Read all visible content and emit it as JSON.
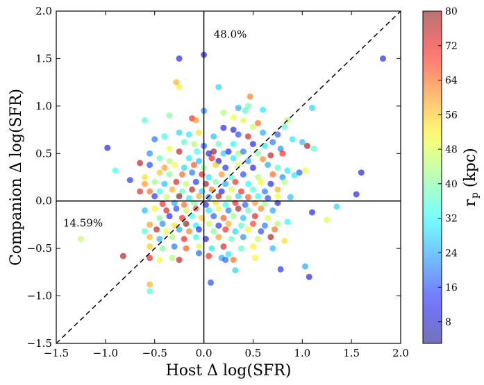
{
  "chart_data": {
    "type": "scatter",
    "xlabel": "Host Δ log(SFR)",
    "ylabel": "Companion Δ log(SFR)",
    "xlim": [
      -1.5,
      2.0
    ],
    "ylim": [
      -1.5,
      2.0
    ],
    "x_ticks": [
      "−1.5",
      "−1.0",
      "−0.5",
      "0.0",
      "0.5",
      "1.0",
      "1.5",
      "2.0"
    ],
    "y_ticks": [
      "−1.5",
      "−1.0",
      "−0.5",
      "0.0",
      "0.5",
      "1.0",
      "1.5",
      "2.0"
    ],
    "annotations": [
      {
        "text": "48.0%",
        "x": 0.1,
        "y": 1.72
      },
      {
        "text": "14.59%",
        "x": -1.43,
        "y": -0.27
      }
    ],
    "reference_lines": [
      {
        "type": "vertical",
        "x": 0.0
      },
      {
        "type": "horizontal",
        "y": 0.0
      },
      {
        "type": "diagonal",
        "style": "dashed",
        "from": [
          -1.5,
          -1.5
        ],
        "to": [
          2.0,
          2.0
        ]
      }
    ],
    "colorbar": {
      "label": "r_p (kpc)",
      "label_main": "r",
      "label_sub": "p",
      "label_unit": " (kpc)",
      "min": 3,
      "max": 80,
      "ticks": [
        8,
        16,
        24,
        32,
        40,
        48,
        56,
        64,
        72,
        80
      ],
      "colormap": "jet",
      "alpha": 0.55
    },
    "marker_alpha": 0.6,
    "points": [
      {
        "x": -0.25,
        "y": 1.5,
        "c": 10
      },
      {
        "x": 0.0,
        "y": 1.54,
        "c": 8
      },
      {
        "x": 1.82,
        "y": 1.5,
        "c": 10
      },
      {
        "x": -0.28,
        "y": 1.25,
        "c": 58
      },
      {
        "x": -0.25,
        "y": 1.2,
        "c": 52
      },
      {
        "x": 0.15,
        "y": 1.2,
        "c": 28
      },
      {
        "x": 0.47,
        "y": 1.1,
        "c": 62
      },
      {
        "x": 0.45,
        "y": 1.0,
        "c": 38
      },
      {
        "x": 0.35,
        "y": 0.98,
        "c": 24
      },
      {
        "x": 0.42,
        "y": 0.95,
        "c": 36
      },
      {
        "x": 0.6,
        "y": 0.96,
        "c": 30
      },
      {
        "x": 0.0,
        "y": 0.95,
        "c": 22
      },
      {
        "x": 0.2,
        "y": 0.93,
        "c": 44
      },
      {
        "x": 1.1,
        "y": 0.98,
        "c": 28
      },
      {
        "x": -0.6,
        "y": 0.85,
        "c": 36
      },
      {
        "x": -0.35,
        "y": 0.9,
        "c": 40
      },
      {
        "x": -0.12,
        "y": 0.87,
        "c": 70
      },
      {
        "x": -0.08,
        "y": 0.85,
        "c": 60
      },
      {
        "x": 0.3,
        "y": 0.88,
        "c": 50
      },
      {
        "x": 0.4,
        "y": 0.85,
        "c": 48
      },
      {
        "x": 0.55,
        "y": 0.82,
        "c": 64
      },
      {
        "x": 0.85,
        "y": 0.85,
        "c": 44
      },
      {
        "x": 0.2,
        "y": 0.77,
        "c": 12
      },
      {
        "x": 0.3,
        "y": 0.75,
        "c": 8
      },
      {
        "x": 0.5,
        "y": 0.78,
        "c": 46
      },
      {
        "x": 0.82,
        "y": 0.78,
        "c": 36
      },
      {
        "x": -0.25,
        "y": 0.72,
        "c": 28
      },
      {
        "x": -0.15,
        "y": 0.7,
        "c": 30
      },
      {
        "x": -0.05,
        "y": 0.72,
        "c": 54
      },
      {
        "x": 0.1,
        "y": 0.68,
        "c": 26
      },
      {
        "x": 0.35,
        "y": 0.7,
        "c": 16
      },
      {
        "x": 0.6,
        "y": 0.72,
        "c": 24
      },
      {
        "x": 0.75,
        "y": 0.7,
        "c": 18
      },
      {
        "x": -0.4,
        "y": 0.68,
        "c": 34
      },
      {
        "x": -0.5,
        "y": 0.65,
        "c": 20
      },
      {
        "x": 0.45,
        "y": 0.68,
        "c": 74
      },
      {
        "x": 0.7,
        "y": 0.62,
        "c": 20
      },
      {
        "x": 0.9,
        "y": 0.65,
        "c": 30
      },
      {
        "x": -0.2,
        "y": 0.62,
        "c": 36
      },
      {
        "x": -0.1,
        "y": 0.6,
        "c": 44
      },
      {
        "x": 0.0,
        "y": 0.58,
        "c": 18
      },
      {
        "x": 0.15,
        "y": 0.6,
        "c": 38
      },
      {
        "x": 0.3,
        "y": 0.6,
        "c": 32
      },
      {
        "x": 0.5,
        "y": 0.6,
        "c": 10
      },
      {
        "x": 0.62,
        "y": 0.58,
        "c": 30
      },
      {
        "x": 0.78,
        "y": 0.55,
        "c": 22
      },
      {
        "x": 1.0,
        "y": 0.62,
        "c": 26
      },
      {
        "x": 1.05,
        "y": 0.58,
        "c": 78
      },
      {
        "x": 1.12,
        "y": 0.55,
        "c": 36
      },
      {
        "x": -0.35,
        "y": 0.55,
        "c": 50
      },
      {
        "x": -0.25,
        "y": 0.52,
        "c": 76
      },
      {
        "x": -0.07,
        "y": 0.52,
        "c": 34
      },
      {
        "x": 0.05,
        "y": 0.5,
        "c": 8
      },
      {
        "x": 0.1,
        "y": 0.52,
        "c": 80
      },
      {
        "x": 0.2,
        "y": 0.5,
        "c": 28
      },
      {
        "x": 0.25,
        "y": 0.52,
        "c": 12
      },
      {
        "x": 0.35,
        "y": 0.5,
        "c": 44
      },
      {
        "x": 0.4,
        "y": 0.52,
        "c": 20
      },
      {
        "x": 0.55,
        "y": 0.5,
        "c": 40
      },
      {
        "x": 0.68,
        "y": 0.48,
        "c": 76
      },
      {
        "x": 0.8,
        "y": 0.5,
        "c": 70
      },
      {
        "x": -0.55,
        "y": 0.5,
        "c": 22
      },
      {
        "x": -0.45,
        "y": 0.45,
        "c": 38
      },
      {
        "x": -0.35,
        "y": 0.42,
        "c": 44
      },
      {
        "x": -0.15,
        "y": 0.45,
        "c": 30
      },
      {
        "x": -0.05,
        "y": 0.42,
        "c": 26
      },
      {
        "x": 0.08,
        "y": 0.45,
        "c": 72
      },
      {
        "x": 0.15,
        "y": 0.42,
        "c": 8
      },
      {
        "x": 0.3,
        "y": 0.45,
        "c": 30
      },
      {
        "x": 0.45,
        "y": 0.42,
        "c": 24
      },
      {
        "x": 0.6,
        "y": 0.44,
        "c": 62
      },
      {
        "x": -0.98,
        "y": 0.56,
        "c": 10
      },
      {
        "x": -0.65,
        "y": 0.4,
        "c": 76
      },
      {
        "x": -0.6,
        "y": 0.25,
        "c": 54
      },
      {
        "x": -0.9,
        "y": 0.32,
        "c": 34
      },
      {
        "x": -0.75,
        "y": 0.22,
        "c": 14
      },
      {
        "x": -0.55,
        "y": 0.38,
        "c": 16
      },
      {
        "x": -0.4,
        "y": 0.35,
        "c": 60
      },
      {
        "x": -0.3,
        "y": 0.38,
        "c": 50
      },
      {
        "x": -0.2,
        "y": 0.35,
        "c": 28
      },
      {
        "x": -0.1,
        "y": 0.38,
        "c": 66
      },
      {
        "x": 0.0,
        "y": 0.35,
        "c": 42
      },
      {
        "x": 0.12,
        "y": 0.38,
        "c": 56
      },
      {
        "x": 0.22,
        "y": 0.35,
        "c": 14
      },
      {
        "x": 0.35,
        "y": 0.38,
        "c": 48
      },
      {
        "x": 0.5,
        "y": 0.35,
        "c": 10
      },
      {
        "x": 0.65,
        "y": 0.38,
        "c": 24
      },
      {
        "x": 0.75,
        "y": 0.35,
        "c": 36
      },
      {
        "x": 0.85,
        "y": 0.32,
        "c": 30
      },
      {
        "x": 0.97,
        "y": 0.3,
        "c": 18
      },
      {
        "x": 1.03,
        "y": 0.32,
        "c": 50
      },
      {
        "x": 1.6,
        "y": 0.3,
        "c": 8
      },
      {
        "x": -0.45,
        "y": 0.3,
        "c": 56
      },
      {
        "x": -0.35,
        "y": 0.28,
        "c": 40
      },
      {
        "x": -0.22,
        "y": 0.28,
        "c": 64
      },
      {
        "x": -0.12,
        "y": 0.3,
        "c": 20
      },
      {
        "x": -0.02,
        "y": 0.28,
        "c": 72
      },
      {
        "x": 0.05,
        "y": 0.25,
        "c": 30
      },
      {
        "x": 0.18,
        "y": 0.28,
        "c": 60
      },
      {
        "x": 0.28,
        "y": 0.25,
        "c": 36
      },
      {
        "x": 0.4,
        "y": 0.28,
        "c": 16
      },
      {
        "x": 0.55,
        "y": 0.25,
        "c": 44
      },
      {
        "x": 0.7,
        "y": 0.28,
        "c": 64
      },
      {
        "x": 0.8,
        "y": 0.25,
        "c": 22
      },
      {
        "x": 0.92,
        "y": 0.27,
        "c": 30
      },
      {
        "x": -0.6,
        "y": 0.18,
        "c": 60
      },
      {
        "x": -0.5,
        "y": 0.2,
        "c": 42
      },
      {
        "x": -0.4,
        "y": 0.18,
        "c": 26
      },
      {
        "x": -0.28,
        "y": 0.2,
        "c": 74
      },
      {
        "x": -0.18,
        "y": 0.18,
        "c": 46
      },
      {
        "x": -0.08,
        "y": 0.2,
        "c": 14
      },
      {
        "x": 0.02,
        "y": 0.18,
        "c": 78
      },
      {
        "x": 0.12,
        "y": 0.2,
        "c": 40
      },
      {
        "x": 0.22,
        "y": 0.18,
        "c": 24
      },
      {
        "x": 0.32,
        "y": 0.2,
        "c": 70
      },
      {
        "x": 0.45,
        "y": 0.18,
        "c": 32
      },
      {
        "x": 0.58,
        "y": 0.2,
        "c": 52
      },
      {
        "x": 0.68,
        "y": 0.18,
        "c": 12
      },
      {
        "x": 0.82,
        "y": 0.2,
        "c": 44
      },
      {
        "x": -0.65,
        "y": 0.1,
        "c": 72
      },
      {
        "x": -0.55,
        "y": 0.1,
        "c": 64
      },
      {
        "x": -0.45,
        "y": 0.1,
        "c": 34
      },
      {
        "x": -0.32,
        "y": 0.12,
        "c": 58
      },
      {
        "x": -0.22,
        "y": 0.1,
        "c": 38
      },
      {
        "x": -0.12,
        "y": 0.12,
        "c": 76
      },
      {
        "x": -0.02,
        "y": 0.1,
        "c": 28
      },
      {
        "x": 0.08,
        "y": 0.12,
        "c": 62
      },
      {
        "x": 0.18,
        "y": 0.1,
        "c": 10
      },
      {
        "x": 0.28,
        "y": 0.12,
        "c": 48
      },
      {
        "x": 0.38,
        "y": 0.1,
        "c": 70
      },
      {
        "x": 0.5,
        "y": 0.12,
        "c": 36
      },
      {
        "x": 0.62,
        "y": 0.1,
        "c": 20
      },
      {
        "x": 0.75,
        "y": 0.12,
        "c": 58
      },
      {
        "x": -0.5,
        "y": 0.05,
        "c": 14
      },
      {
        "x": -0.38,
        "y": 0.04,
        "c": 46
      },
      {
        "x": -0.25,
        "y": 0.05,
        "c": 80
      },
      {
        "x": -0.15,
        "y": 0.03,
        "c": 30
      },
      {
        "x": -0.05,
        "y": 0.05,
        "c": 58
      },
      {
        "x": 0.05,
        "y": 0.04,
        "c": 22
      },
      {
        "x": 0.15,
        "y": 0.05,
        "c": 76
      },
      {
        "x": 0.25,
        "y": 0.03,
        "c": 44
      },
      {
        "x": 0.35,
        "y": 0.05,
        "c": 28
      },
      {
        "x": 0.45,
        "y": 0.04,
        "c": 66
      },
      {
        "x": 0.55,
        "y": 0.05,
        "c": 32
      },
      {
        "x": 0.65,
        "y": 0.03,
        "c": 16
      },
      {
        "x": 0.75,
        "y": 0.05,
        "c": 50
      },
      {
        "x": 0.88,
        "y": 0.04,
        "c": 26
      },
      {
        "x": 1.55,
        "y": 0.07,
        "c": 10
      },
      {
        "x": -0.42,
        "y": -0.03,
        "c": 70
      },
      {
        "x": -0.3,
        "y": -0.02,
        "c": 24
      },
      {
        "x": -0.2,
        "y": -0.04,
        "c": 64
      },
      {
        "x": -0.1,
        "y": -0.02,
        "c": 40
      },
      {
        "x": 0.02,
        "y": -0.04,
        "c": 12
      },
      {
        "x": 0.12,
        "y": -0.02,
        "c": 54
      },
      {
        "x": 0.22,
        "y": -0.04,
        "c": 34
      },
      {
        "x": 0.32,
        "y": -0.02,
        "c": 72
      },
      {
        "x": 0.42,
        "y": -0.04,
        "c": 18
      },
      {
        "x": 0.52,
        "y": -0.02,
        "c": 60
      },
      {
        "x": 0.62,
        "y": -0.03,
        "c": 42
      },
      {
        "x": 0.75,
        "y": -0.02,
        "c": 8
      },
      {
        "x": -0.6,
        "y": -0.1,
        "c": 26
      },
      {
        "x": -0.5,
        "y": -0.08,
        "c": 52
      },
      {
        "x": -0.38,
        "y": -0.1,
        "c": 74
      },
      {
        "x": -0.28,
        "y": -0.08,
        "c": 16
      },
      {
        "x": -0.18,
        "y": -0.1,
        "c": 46
      },
      {
        "x": -0.08,
        "y": -0.08,
        "c": 66
      },
      {
        "x": 0.05,
        "y": -0.1,
        "c": 30
      },
      {
        "x": 0.15,
        "y": -0.08,
        "c": 50
      },
      {
        "x": 0.25,
        "y": -0.1,
        "c": 20
      },
      {
        "x": 0.35,
        "y": -0.08,
        "c": 78
      },
      {
        "x": 0.45,
        "y": -0.1,
        "c": 38
      },
      {
        "x": 0.58,
        "y": -0.08,
        "c": 62
      },
      {
        "x": 0.7,
        "y": -0.1,
        "c": 24
      },
      {
        "x": 1.1,
        "y": -0.12,
        "c": 10
      },
      {
        "x": 1.35,
        "y": -0.06,
        "c": 28
      },
      {
        "x": -0.45,
        "y": -0.18,
        "c": 40
      },
      {
        "x": -0.35,
        "y": -0.16,
        "c": 12
      },
      {
        "x": -0.22,
        "y": -0.18,
        "c": 70
      },
      {
        "x": -0.12,
        "y": -0.16,
        "c": 34
      },
      {
        "x": -0.02,
        "y": -0.18,
        "c": 56
      },
      {
        "x": 0.1,
        "y": -0.16,
        "c": 18
      },
      {
        "x": 0.2,
        "y": -0.18,
        "c": 66
      },
      {
        "x": 0.3,
        "y": -0.16,
        "c": 42
      },
      {
        "x": 0.4,
        "y": -0.18,
        "c": 26
      },
      {
        "x": 0.52,
        "y": -0.16,
        "c": 74
      },
      {
        "x": 0.65,
        "y": -0.18,
        "c": 48
      },
      {
        "x": -0.55,
        "y": -0.25,
        "c": 60
      },
      {
        "x": -0.42,
        "y": -0.24,
        "c": 22
      },
      {
        "x": -0.3,
        "y": -0.26,
        "c": 54
      },
      {
        "x": -0.18,
        "y": -0.24,
        "c": 80
      },
      {
        "x": -0.08,
        "y": -0.26,
        "c": 30
      },
      {
        "x": 0.05,
        "y": -0.24,
        "c": 46
      },
      {
        "x": 0.15,
        "y": -0.26,
        "c": 14
      },
      {
        "x": 0.25,
        "y": -0.24,
        "c": 58
      },
      {
        "x": 0.38,
        "y": -0.26,
        "c": 36
      },
      {
        "x": 0.5,
        "y": -0.24,
        "c": 68
      },
      {
        "x": 0.62,
        "y": -0.26,
        "c": 20
      },
      {
        "x": 0.75,
        "y": -0.24,
        "c": 44
      },
      {
        "x": 0.85,
        "y": -0.22,
        "c": 32
      },
      {
        "x": 1.25,
        "y": -0.2,
        "c": 48
      },
      {
        "x": -1.25,
        "y": -0.4,
        "c": 46
      },
      {
        "x": -0.6,
        "y": -0.32,
        "c": 36
      },
      {
        "x": -0.48,
        "y": -0.3,
        "c": 76
      },
      {
        "x": -0.38,
        "y": -0.32,
        "c": 50
      },
      {
        "x": -0.25,
        "y": -0.3,
        "c": 24
      },
      {
        "x": -0.15,
        "y": -0.32,
        "c": 62
      },
      {
        "x": -0.05,
        "y": -0.3,
        "c": 12
      },
      {
        "x": 0.1,
        "y": -0.32,
        "c": 40
      },
      {
        "x": 0.22,
        "y": -0.3,
        "c": 70
      },
      {
        "x": 0.32,
        "y": -0.32,
        "c": 28
      },
      {
        "x": 0.45,
        "y": -0.3,
        "c": 52
      },
      {
        "x": 0.58,
        "y": -0.32,
        "c": 16
      },
      {
        "x": 0.72,
        "y": -0.3,
        "c": 64
      },
      {
        "x": -0.55,
        "y": -0.38,
        "c": 58
      },
      {
        "x": -0.45,
        "y": -0.4,
        "c": 26
      },
      {
        "x": -0.32,
        "y": -0.38,
        "c": 44
      },
      {
        "x": -0.2,
        "y": -0.4,
        "c": 72
      },
      {
        "x": -0.08,
        "y": -0.38,
        "c": 34
      },
      {
        "x": 0.02,
        "y": -0.4,
        "c": 8
      },
      {
        "x": 0.15,
        "y": -0.38,
        "c": 60
      },
      {
        "x": 0.28,
        "y": -0.4,
        "c": 38
      },
      {
        "x": 0.4,
        "y": -0.38,
        "c": 22
      },
      {
        "x": 0.55,
        "y": -0.4,
        "c": 46
      },
      {
        "x": 0.68,
        "y": -0.38,
        "c": 78
      },
      {
        "x": 0.82,
        "y": -0.42,
        "c": 54
      },
      {
        "x": -0.55,
        "y": -0.48,
        "c": 56
      },
      {
        "x": -0.42,
        "y": -0.5,
        "c": 40
      },
      {
        "x": -0.3,
        "y": -0.48,
        "c": 20
      },
      {
        "x": -0.18,
        "y": -0.5,
        "c": 66
      },
      {
        "x": -0.05,
        "y": -0.48,
        "c": 48
      },
      {
        "x": 0.08,
        "y": -0.5,
        "c": 30
      },
      {
        "x": 0.2,
        "y": -0.48,
        "c": 74
      },
      {
        "x": 0.38,
        "y": -0.5,
        "c": 36
      },
      {
        "x": 0.5,
        "y": -0.48,
        "c": 52
      },
      {
        "x": 0.7,
        "y": -0.5,
        "c": 26
      },
      {
        "x": -0.05,
        "y": -0.55,
        "c": 18
      },
      {
        "x": 0.05,
        "y": -0.58,
        "c": 70
      },
      {
        "x": 0.25,
        "y": -0.56,
        "c": 30
      },
      {
        "x": -0.82,
        "y": -0.58,
        "c": 78
      },
      {
        "x": -0.55,
        "y": -0.6,
        "c": 72
      },
      {
        "x": -0.45,
        "y": -0.62,
        "c": 50
      },
      {
        "x": -0.32,
        "y": -0.6,
        "c": 44
      },
      {
        "x": -0.25,
        "y": -0.62,
        "c": 76
      },
      {
        "x": 0.18,
        "y": -0.6,
        "c": 24
      },
      {
        "x": 0.22,
        "y": -0.62,
        "c": 18
      },
      {
        "x": 0.3,
        "y": -0.62,
        "c": 64
      },
      {
        "x": 0.52,
        "y": -0.6,
        "c": 52
      },
      {
        "x": 0.78,
        "y": -0.72,
        "c": 14
      },
      {
        "x": 1.03,
        "y": -0.69,
        "c": 24
      },
      {
        "x": 0.32,
        "y": -0.73,
        "c": 28
      },
      {
        "x": 1.07,
        "y": -0.8,
        "c": 10
      },
      {
        "x": 0.07,
        "y": -0.86,
        "c": 16
      },
      {
        "x": -0.55,
        "y": -0.88,
        "c": 58
      },
      {
        "x": -0.55,
        "y": -0.95,
        "c": 36
      }
    ]
  }
}
